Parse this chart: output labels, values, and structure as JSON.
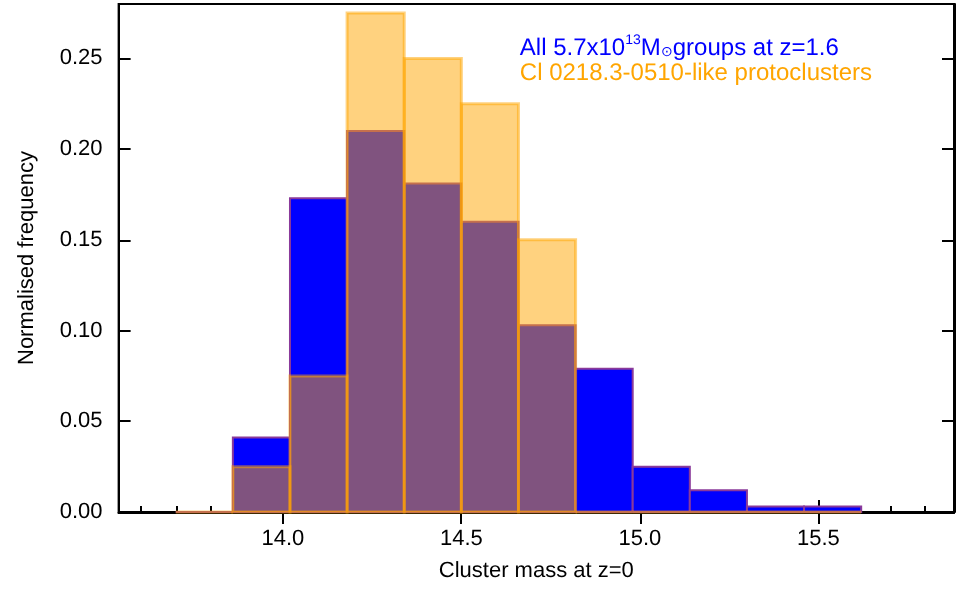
{
  "chart_data": {
    "type": "histogram",
    "xlabel": "Cluster mass at z=0",
    "ylabel": "Normalised frequency",
    "bins": [
      13.7,
      13.86,
      14.02,
      14.18,
      14.34,
      14.5,
      14.66,
      14.82,
      14.98,
      15.14,
      15.3,
      15.46,
      15.62
    ],
    "series": [
      {
        "name": "All 5.7x10$^{13}$M$_{⊙}$groups at z=1.6",
        "color": "#0000ff",
        "values": [
          0,
          0.041,
          0.173,
          0.21,
          0.181,
          0.16,
          0.103,
          0.079,
          0.025,
          0.012,
          0.003,
          0.003
        ]
      },
      {
        "name": "Cl 0218.3-0510-like protoclusters",
        "color": "#ffa500",
        "values": [
          0,
          0.025,
          0.075,
          0.275,
          0.25,
          0.225,
          0.15,
          0,
          0,
          0,
          0,
          0
        ]
      }
    ],
    "xlim": [
      13.54,
      15.88
    ],
    "xticks": [
      {
        "value": 14.0,
        "label": "14.0"
      },
      {
        "value": 14.5,
        "label": "14.5"
      },
      {
        "value": 15.0,
        "label": "15.0"
      },
      {
        "value": 15.5,
        "label": "15.5"
      }
    ],
    "ylim": [
      0,
      0.28
    ],
    "yticks": [
      {
        "value": 0,
        "label": "0.00"
      },
      {
        "value": 0.05,
        "label": "0.05"
      },
      {
        "value": 0.1,
        "label": "0.10"
      },
      {
        "value": 0.15,
        "label": "0.15"
      },
      {
        "value": 0.2,
        "label": "0.20"
      },
      {
        "value": 0.25,
        "label": "0.25"
      }
    ],
    "legend": "top right",
    "grid": false
  }
}
